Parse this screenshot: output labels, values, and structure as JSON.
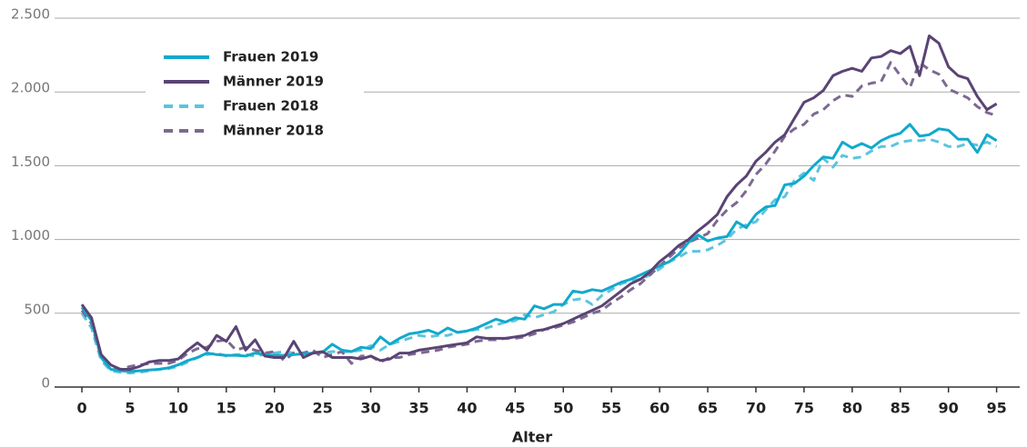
{
  "chart_data": {
    "type": "line",
    "x_label": "Alter",
    "x": [
      0,
      1,
      2,
      3,
      4,
      5,
      6,
      7,
      8,
      9,
      10,
      11,
      12,
      13,
      14,
      15,
      16,
      17,
      18,
      19,
      20,
      21,
      22,
      23,
      24,
      25,
      26,
      27,
      28,
      29,
      30,
      31,
      32,
      33,
      34,
      35,
      36,
      37,
      38,
      39,
      40,
      41,
      42,
      43,
      44,
      45,
      46,
      47,
      48,
      49,
      50,
      51,
      52,
      53,
      54,
      55,
      56,
      57,
      58,
      59,
      60,
      61,
      62,
      63,
      64,
      65,
      66,
      67,
      68,
      69,
      70,
      71,
      72,
      73,
      74,
      75,
      76,
      77,
      78,
      79,
      80,
      81,
      82,
      83,
      84,
      85,
      86,
      87,
      88,
      89,
      90,
      91,
      92,
      93,
      94,
      95
    ],
    "xlim": [
      -1.4,
      97.4
    ],
    "xticks": [
      0,
      5,
      10,
      15,
      20,
      25,
      30,
      35,
      40,
      45,
      50,
      55,
      60,
      65,
      70,
      75,
      80,
      85,
      90,
      95
    ],
    "ylim": [
      0,
      2500
    ],
    "yticks": [
      0,
      {
        "value": 500,
        "label": "500"
      },
      {
        "value": 1000,
        "label": "1.000"
      },
      {
        "value": 1500,
        "label": "1.500"
      },
      {
        "value": 2000,
        "label": "2.000"
      },
      {
        "value": 2500,
        "label": "2.500"
      }
    ],
    "grid": true,
    "legend": "upper left",
    "series": [
      {
        "name": "Frauen 2019",
        "color": "#12a9cc",
        "dash": false,
        "values": [
          540,
          450,
          200,
          120,
          110,
          105,
          110,
          115,
          120,
          130,
          150,
          180,
          200,
          230,
          220,
          215,
          215,
          210,
          230,
          220,
          215,
          215,
          220,
          225,
          230,
          235,
          290,
          250,
          240,
          270,
          260,
          340,
          290,
          330,
          360,
          370,
          385,
          360,
          400,
          370,
          380,
          400,
          430,
          460,
          440,
          470,
          460,
          550,
          530,
          560,
          560,
          650,
          640,
          660,
          650,
          680,
          710,
          730,
          760,
          790,
          820,
          850,
          900,
          980,
          1030,
          990,
          1010,
          1020,
          1120,
          1080,
          1170,
          1220,
          1230,
          1370,
          1380,
          1430,
          1500,
          1560,
          1550,
          1660,
          1620,
          1650,
          1620,
          1670,
          1700,
          1720,
          1780,
          1700,
          1710,
          1750,
          1740,
          1680,
          1680,
          1590,
          1710,
          1670
        ]
      },
      {
        "name": "Männer 2019",
        "color": "#5a4474",
        "dash": false,
        "values": [
          560,
          470,
          220,
          150,
          120,
          120,
          140,
          170,
          180,
          180,
          190,
          250,
          300,
          250,
          350,
          310,
          410,
          250,
          320,
          210,
          200,
          200,
          310,
          200,
          230,
          240,
          200,
          200,
          200,
          190,
          210,
          180,
          190,
          230,
          230,
          250,
          260,
          270,
          280,
          290,
          300,
          340,
          330,
          330,
          330,
          340,
          350,
          380,
          390,
          410,
          430,
          460,
          490,
          520,
          550,
          600,
          650,
          700,
          730,
          780,
          850,
          900,
          960,
          1000,
          1060,
          1110,
          1170,
          1290,
          1370,
          1430,
          1530,
          1590,
          1660,
          1710,
          1820,
          1930,
          1960,
          2010,
          2110,
          2140,
          2160,
          2140,
          2230,
          2240,
          2280,
          2260,
          2310,
          2110,
          2380,
          2330,
          2170,
          2110,
          2090,
          1970,
          1880,
          1920
        ]
      },
      {
        "name": "Frauen 2018",
        "color": "#5cc4de",
        "dash": true,
        "values": [
          500,
          400,
          180,
          110,
          100,
          95,
          100,
          110,
          120,
          125,
          140,
          170,
          200,
          220,
          230,
          210,
          220,
          220,
          210,
          220,
          230,
          240,
          230,
          230,
          240,
          230,
          240,
          240,
          240,
          250,
          280,
          250,
          290,
          310,
          330,
          350,
          340,
          350,
          350,
          370,
          380,
          390,
          400,
          420,
          440,
          450,
          490,
          470,
          490,
          510,
          560,
          590,
          600,
          560,
          620,
          660,
          700,
          720,
          730,
          760,
          800,
          850,
          880,
          920,
          920,
          930,
          960,
          1000,
          1070,
          1100,
          1120,
          1200,
          1270,
          1290,
          1400,
          1450,
          1400,
          1550,
          1490,
          1570,
          1550,
          1560,
          1600,
          1630,
          1630,
          1660,
          1670,
          1670,
          1680,
          1660,
          1630,
          1630,
          1650,
          1640,
          1660,
          1630
        ]
      },
      {
        "name": "Männer 2018",
        "color": "#7c6990",
        "dash": true,
        "values": [
          520,
          430,
          200,
          140,
          120,
          140,
          150,
          160,
          160,
          160,
          180,
          230,
          260,
          270,
          310,
          320,
          250,
          270,
          250,
          230,
          240,
          180,
          230,
          230,
          250,
          200,
          220,
          240,
          160,
          210,
          210,
          170,
          200,
          200,
          220,
          230,
          240,
          250,
          270,
          280,
          290,
          310,
          320,
          320,
          330,
          330,
          340,
          360,
          390,
          400,
          420,
          440,
          470,
          500,
          520,
          570,
          610,
          660,
          700,
          760,
          820,
          880,
          940,
          980,
          1010,
          1040,
          1130,
          1200,
          1250,
          1330,
          1440,
          1510,
          1600,
          1700,
          1750,
          1780,
          1850,
          1880,
          1940,
          1980,
          1970,
          2040,
          2060,
          2070,
          2200,
          2110,
          2030,
          2200,
          2150,
          2120,
          2020,
          1990,
          1960,
          1900,
          1860,
          1840
        ]
      }
    ]
  }
}
